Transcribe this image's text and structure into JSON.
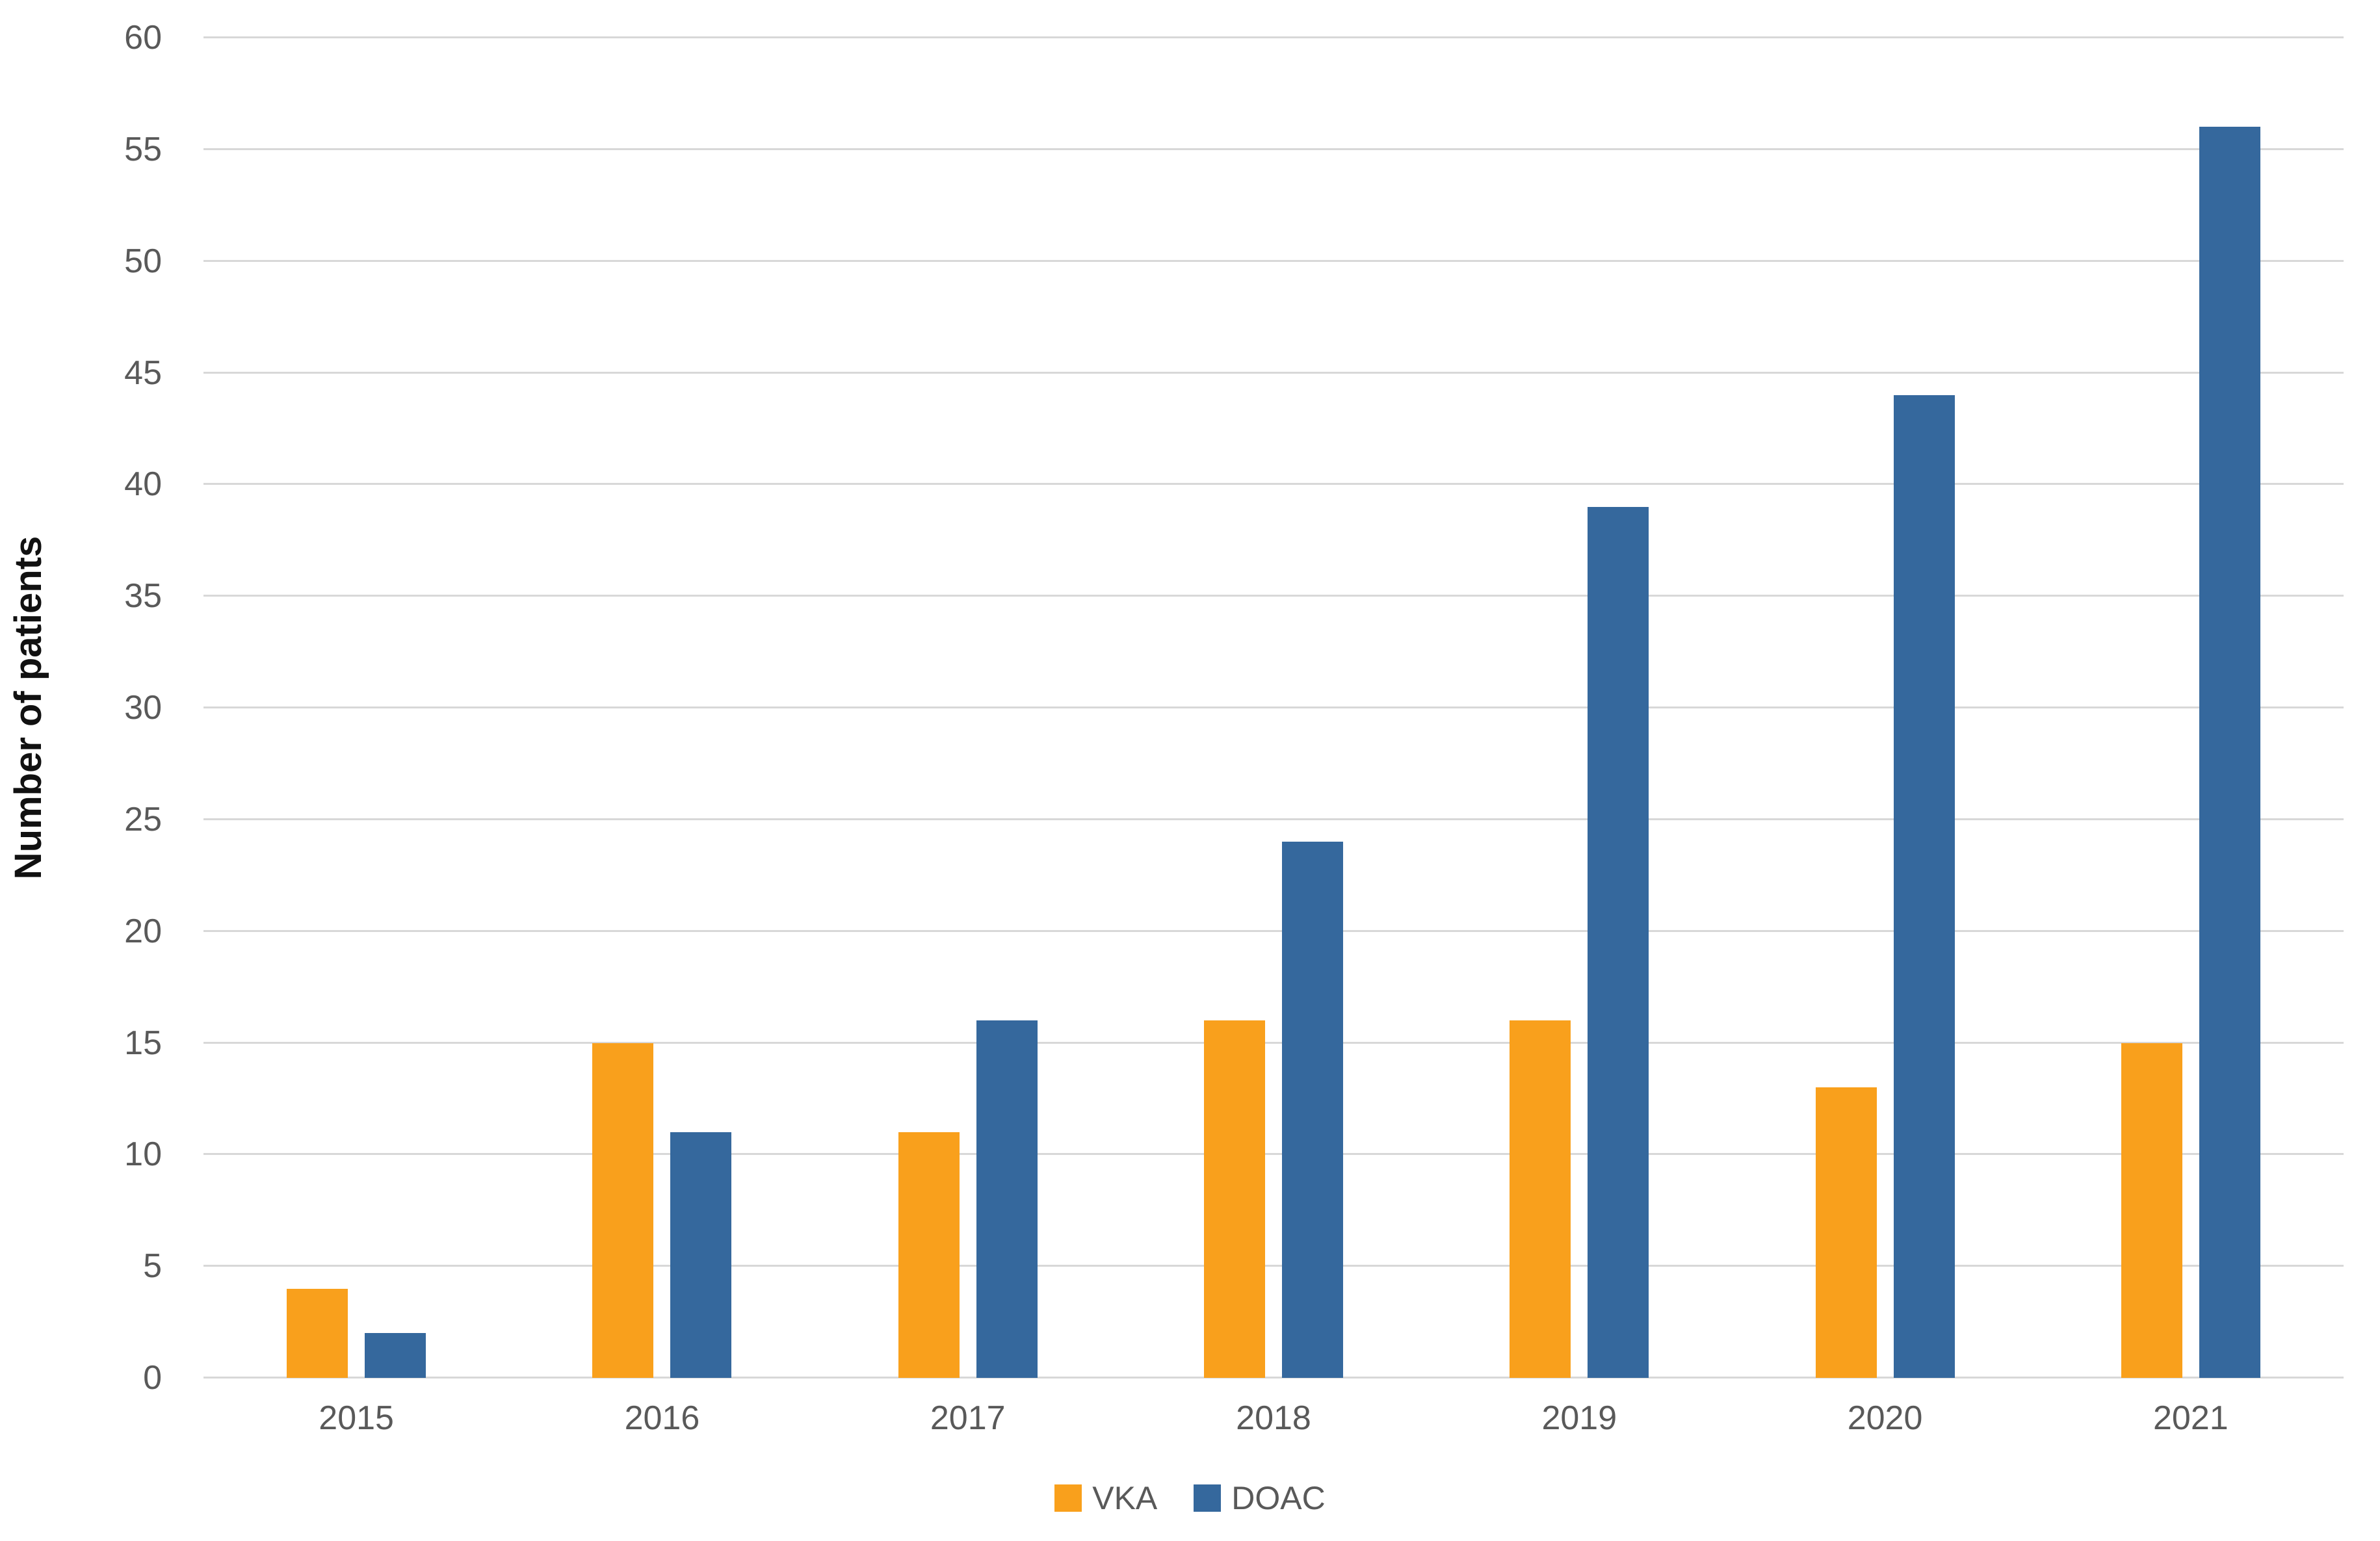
{
  "chart_data": {
    "type": "bar",
    "title": "",
    "xlabel": "",
    "ylabel": "Number of patients",
    "categories": [
      "2015",
      "2016",
      "2017",
      "2018",
      "2019",
      "2020",
      "2021"
    ],
    "series": [
      {
        "name": "VKA",
        "color": "#F9A01C",
        "values": [
          4,
          15,
          11,
          16,
          16,
          13,
          15
        ]
      },
      {
        "name": "DOAC",
        "color": "#35689D",
        "values": [
          2,
          11,
          16,
          24,
          39,
          44,
          56
        ]
      }
    ],
    "ylim": [
      0,
      60
    ],
    "ytick_step": 5,
    "yticks": [
      0,
      5,
      10,
      15,
      20,
      25,
      30,
      35,
      40,
      45,
      50,
      55,
      60
    ],
    "grid": true,
    "legend_position": "bottom",
    "style": {
      "gridline_color": "#d8d8d8",
      "tick_label_color": "#595959",
      "axis_title_color": "#111111",
      "background_color": "#ffffff"
    }
  }
}
